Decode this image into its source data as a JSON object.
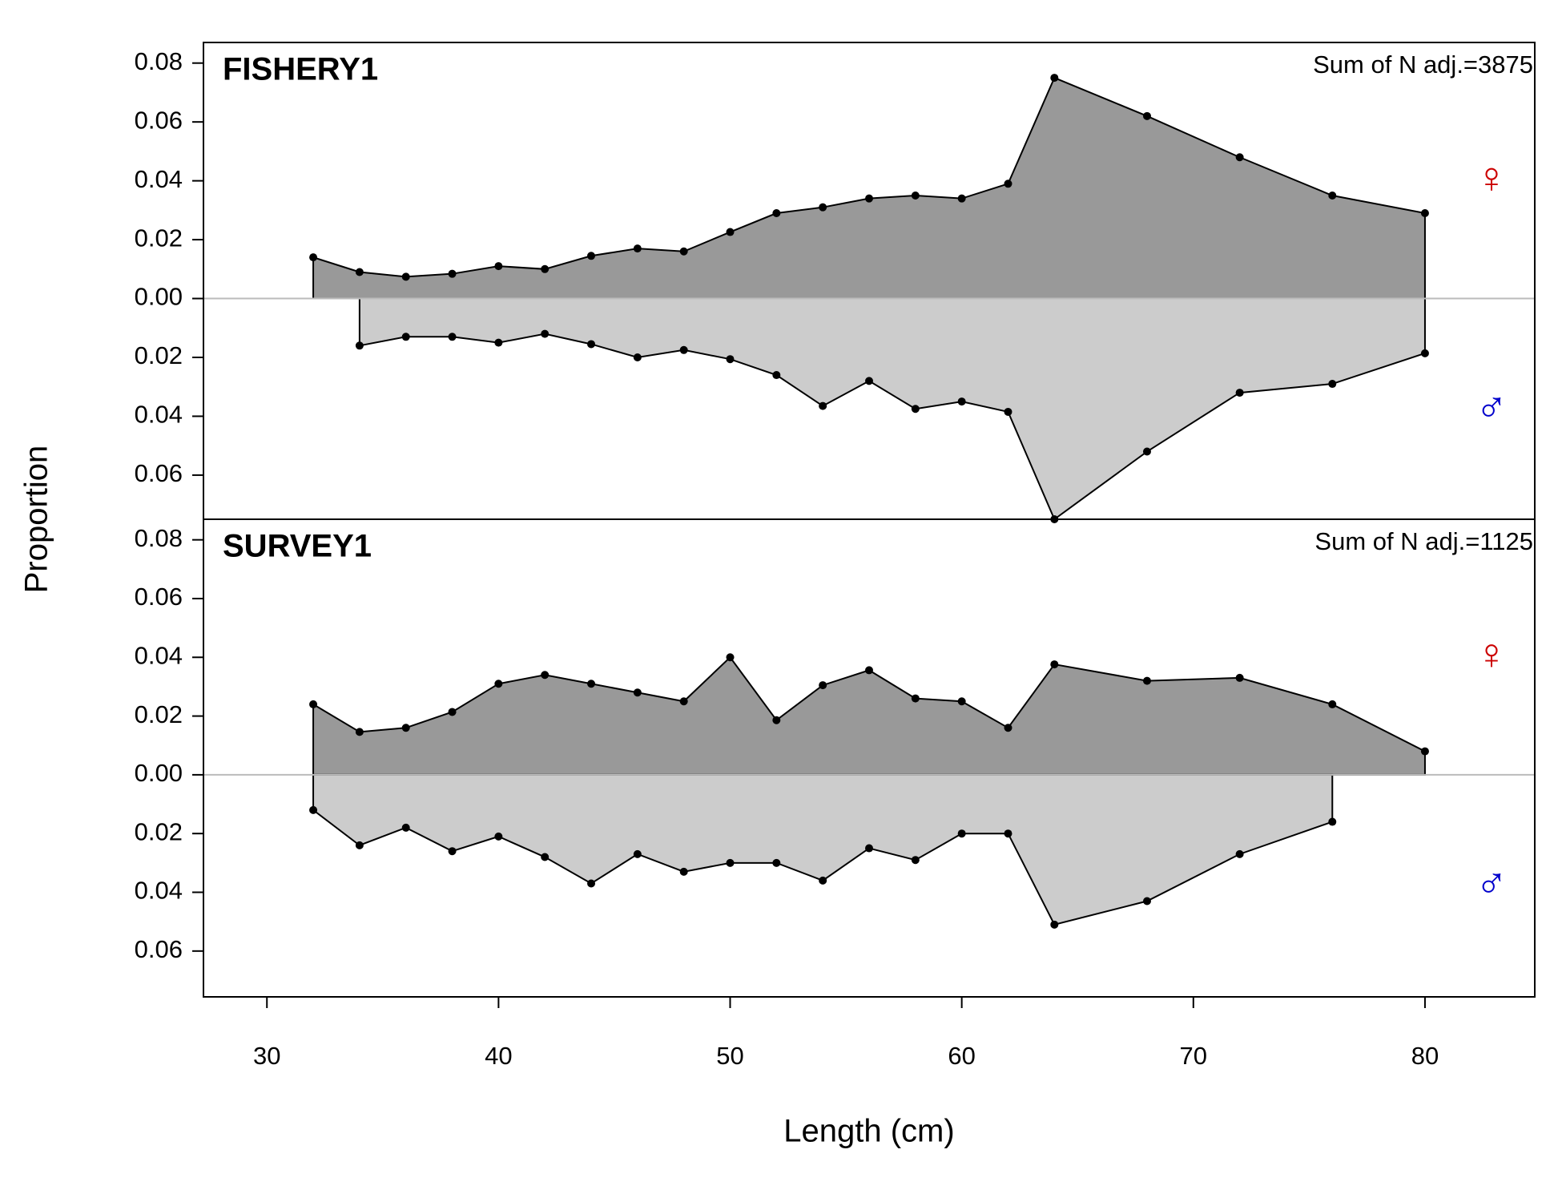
{
  "chart_data": [
    {
      "type": "area",
      "title": "FISHERY1",
      "annotation": "Sum of N adj.=3875",
      "ylabel": "Proportion",
      "xlim": [
        27.26,
        84.74
      ],
      "ylim": [
        -0.075,
        0.087
      ],
      "yticks": [
        0.08,
        0.06,
        0.04,
        0.02,
        {
          "value": 0,
          "label": "0.00"
        },
        {
          "value": -0.02,
          "label": "0.02"
        },
        {
          "value": -0.04,
          "label": "0.04"
        },
        {
          "value": -0.06,
          "label": "0.06"
        }
      ],
      "series": [
        {
          "name": "♀",
          "color": "#cc0000",
          "fill": "#999999",
          "x": [
            32,
            34,
            36,
            38,
            40,
            42,
            44,
            46,
            48,
            50,
            52,
            54,
            56,
            58,
            60,
            62,
            64,
            68,
            72,
            76,
            80
          ],
          "values": [
            0.014,
            0.009,
            0.0074,
            0.0084,
            0.011,
            0.01,
            0.0145,
            0.017,
            0.016,
            0.0226,
            0.029,
            0.031,
            0.034,
            0.035,
            0.034,
            0.039,
            0.075,
            0.062,
            0.048,
            0.035,
            0.029
          ]
        },
        {
          "name": "♂",
          "color": "#0000cc",
          "fill": "#cccccc",
          "x": [
            34,
            36,
            38,
            40,
            42,
            44,
            46,
            48,
            50,
            52,
            54,
            56,
            58,
            60,
            62,
            64,
            68,
            72,
            76,
            80
          ],
          "values": [
            -0.016,
            -0.013,
            -0.013,
            -0.015,
            -0.012,
            -0.0155,
            -0.02,
            -0.0175,
            -0.0206,
            -0.026,
            -0.0365,
            -0.028,
            -0.0375,
            -0.035,
            -0.0385,
            -0.075,
            -0.052,
            -0.032,
            -0.029,
            -0.0186
          ]
        }
      ]
    },
    {
      "type": "area",
      "title": "SURVEY1",
      "annotation": "Sum of N adj.=1125",
      "xlabel": "Length (cm)",
      "xlim": [
        27.26,
        84.74
      ],
      "ylim": [
        -0.0756,
        0.087
      ],
      "xticks": [
        30,
        40,
        50,
        60,
        70,
        80
      ],
      "yticks": [
        0.08,
        0.06,
        0.04,
        0.02,
        {
          "value": 0,
          "label": "0.00"
        },
        {
          "value": -0.02,
          "label": "0.02"
        },
        {
          "value": -0.04,
          "label": "0.04"
        },
        {
          "value": -0.06,
          "label": "0.06"
        }
      ],
      "series": [
        {
          "name": "♀",
          "color": "#cc0000",
          "fill": "#999999",
          "x": [
            32,
            34,
            36,
            38,
            40,
            42,
            44,
            46,
            48,
            50,
            52,
            54,
            56,
            58,
            60,
            62,
            64,
            68,
            72,
            76,
            80
          ],
          "values": [
            0.024,
            0.0146,
            0.016,
            0.0214,
            0.031,
            0.034,
            0.031,
            0.028,
            0.025,
            0.04,
            0.0186,
            0.0305,
            0.0356,
            0.026,
            0.025,
            0.016,
            0.0376,
            0.032,
            0.033,
            0.024,
            0.008
          ]
        },
        {
          "name": "♂",
          "color": "#0000cc",
          "fill": "#cccccc",
          "x": [
            32,
            34,
            36,
            38,
            40,
            42,
            44,
            46,
            48,
            50,
            52,
            54,
            56,
            58,
            60,
            62,
            64,
            68,
            72,
            76
          ],
          "values": [
            -0.012,
            -0.024,
            -0.018,
            -0.026,
            -0.021,
            -0.028,
            -0.037,
            -0.027,
            -0.033,
            -0.03,
            -0.03,
            -0.036,
            -0.025,
            -0.029,
            -0.02,
            -0.02,
            -0.051,
            -0.043,
            -0.027,
            -0.016
          ]
        }
      ]
    }
  ]
}
